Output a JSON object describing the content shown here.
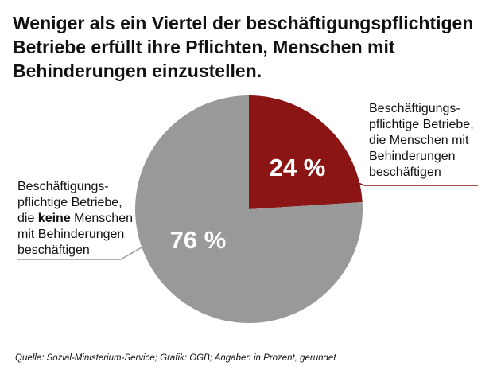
{
  "title": {
    "line1": "Weniger als ein Viertel der beschäftigungspflichtigen",
    "line2": "Betriebe erfüllt ihre Pflichten, Menschen mit",
    "line3": "Behinderungen einzustellen."
  },
  "labels": {
    "employing": {
      "line1": "Beschäftigungs-",
      "line2": "pflichtige Betriebe,",
      "line3": "die Menschen mit",
      "line4": "Behinderungen",
      "line5": "beschäftigen"
    },
    "not_employing": {
      "line1": "Beschäftigungs-",
      "line2": "pflichtige Betriebe,",
      "line3_pre": "die ",
      "line3_bold": "keine",
      "line3_post": " Menschen",
      "line4": "mit Behinderungen",
      "line5": "beschäftigen"
    }
  },
  "source": "Quelle: Sozial-Ministerium-Service; Grafik: ÖGB; Angaben in Prozent, gerundet",
  "colors": {
    "employing": "#8b1515",
    "not_employing": "#999999",
    "leader": "#8b1515",
    "leader_left": "#999999"
  },
  "chart_data": {
    "type": "pie",
    "title": "Weniger als ein Viertel der beschäftigungspflichtigen Betriebe erfüllt ihre Pflichten, Menschen mit Behinderungen einzustellen.",
    "unit": "%",
    "slices": [
      {
        "value": 24,
        "label": "24 %"
      },
      {
        "value": 76,
        "label": "76 %"
      }
    ]
  }
}
